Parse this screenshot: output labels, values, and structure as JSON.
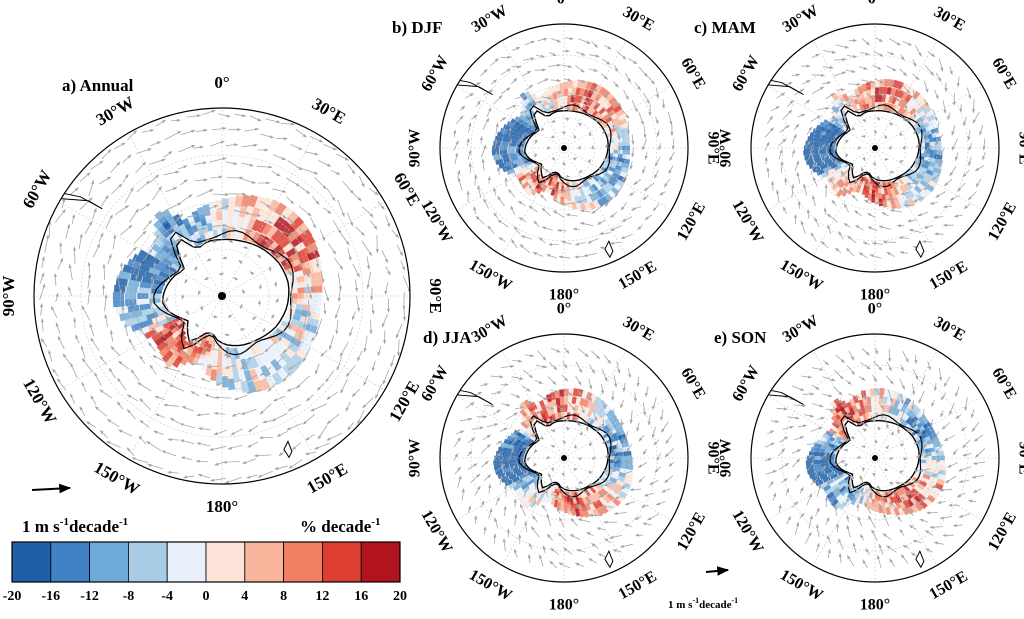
{
  "figure": {
    "panels": [
      {
        "id": "annual",
        "title": "a) Annual"
      },
      {
        "id": "djf",
        "title": "b) DJF"
      },
      {
        "id": "mam",
        "title": "c) MAM"
      },
      {
        "id": "jja",
        "title": "d) JJA"
      },
      {
        "id": "son",
        "title": "e) SON"
      }
    ],
    "longitude_labels": [
      "0°",
      "30°E",
      "60°E",
      "90°E",
      "120°E",
      "150°E",
      "180°",
      "150°W",
      "120°W",
      "90°W",
      "60°W",
      "30°W"
    ],
    "longitude_angles_deg": [
      0,
      30,
      60,
      90,
      120,
      150,
      180,
      -150,
      -120,
      -90,
      -60,
      -30
    ],
    "wind_reference_label_main": "1 m s",
    "wind_reference_sup": "-1",
    "wind_reference_suffix": "decade",
    "wind_reference_sup2": "-1",
    "colorbar": {
      "unit_main": "% decade",
      "unit_sup": "-1",
      "ticks": [
        "-20",
        "-16",
        "-12",
        "-8",
        "-4",
        "0",
        "4",
        "8",
        "12",
        "16",
        "20"
      ],
      "colors": [
        "#1f5fa8",
        "#3f83c4",
        "#6fa9d8",
        "#a9cce6",
        "#e8f0f9",
        "#fde4d8",
        "#f8b59c",
        "#f07f64",
        "#dc3e32",
        "#b1141c"
      ]
    },
    "colors": {
      "land": "#ffffff",
      "arrow": "#a6a6a6",
      "grid": "#c8c8c8",
      "contour": "#000000"
    }
  }
}
